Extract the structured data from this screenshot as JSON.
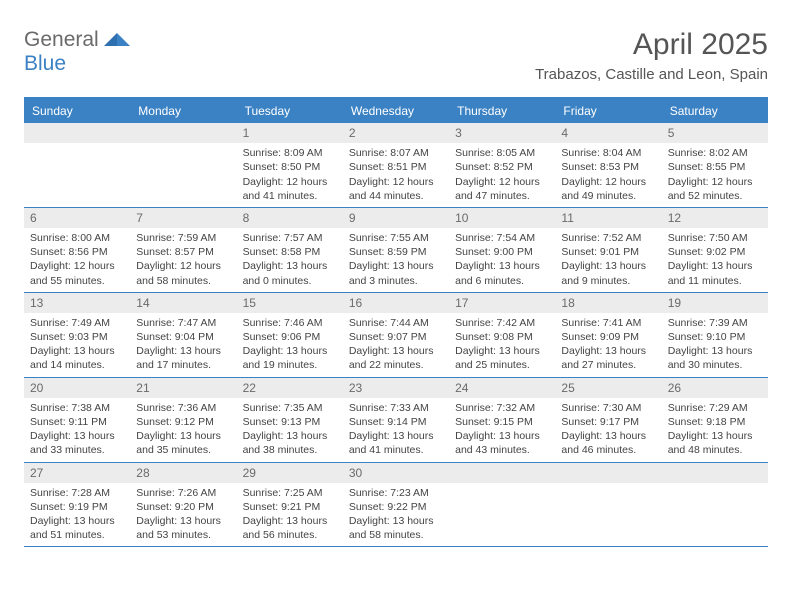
{
  "brand": {
    "part1": "General",
    "part2": "Blue"
  },
  "title": "April 2025",
  "location": "Trabazos, Castille and Leon, Spain",
  "colors": {
    "accent": "#3b82c4",
    "header_bg": "#3b82c4",
    "header_text": "#ffffff",
    "daynum_bg": "#ececec",
    "daynum_text": "#6a6a6a",
    "body_text": "#444444",
    "title_text": "#555555",
    "page_bg": "#ffffff"
  },
  "typography": {
    "title_fontsize": 30,
    "location_fontsize": 15,
    "dayhead_fontsize": 12,
    "daynum_fontsize": 12,
    "cell_fontsize": 10.5
  },
  "day_names": [
    "Sunday",
    "Monday",
    "Tuesday",
    "Wednesday",
    "Thursday",
    "Friday",
    "Saturday"
  ],
  "weeks": [
    [
      {
        "n": "",
        "sr": "",
        "ss": "",
        "dl": ""
      },
      {
        "n": "",
        "sr": "",
        "ss": "",
        "dl": ""
      },
      {
        "n": "1",
        "sr": "Sunrise: 8:09 AM",
        "ss": "Sunset: 8:50 PM",
        "dl": "Daylight: 12 hours and 41 minutes."
      },
      {
        "n": "2",
        "sr": "Sunrise: 8:07 AM",
        "ss": "Sunset: 8:51 PM",
        "dl": "Daylight: 12 hours and 44 minutes."
      },
      {
        "n": "3",
        "sr": "Sunrise: 8:05 AM",
        "ss": "Sunset: 8:52 PM",
        "dl": "Daylight: 12 hours and 47 minutes."
      },
      {
        "n": "4",
        "sr": "Sunrise: 8:04 AM",
        "ss": "Sunset: 8:53 PM",
        "dl": "Daylight: 12 hours and 49 minutes."
      },
      {
        "n": "5",
        "sr": "Sunrise: 8:02 AM",
        "ss": "Sunset: 8:55 PM",
        "dl": "Daylight: 12 hours and 52 minutes."
      }
    ],
    [
      {
        "n": "6",
        "sr": "Sunrise: 8:00 AM",
        "ss": "Sunset: 8:56 PM",
        "dl": "Daylight: 12 hours and 55 minutes."
      },
      {
        "n": "7",
        "sr": "Sunrise: 7:59 AM",
        "ss": "Sunset: 8:57 PM",
        "dl": "Daylight: 12 hours and 58 minutes."
      },
      {
        "n": "8",
        "sr": "Sunrise: 7:57 AM",
        "ss": "Sunset: 8:58 PM",
        "dl": "Daylight: 13 hours and 0 minutes."
      },
      {
        "n": "9",
        "sr": "Sunrise: 7:55 AM",
        "ss": "Sunset: 8:59 PM",
        "dl": "Daylight: 13 hours and 3 minutes."
      },
      {
        "n": "10",
        "sr": "Sunrise: 7:54 AM",
        "ss": "Sunset: 9:00 PM",
        "dl": "Daylight: 13 hours and 6 minutes."
      },
      {
        "n": "11",
        "sr": "Sunrise: 7:52 AM",
        "ss": "Sunset: 9:01 PM",
        "dl": "Daylight: 13 hours and 9 minutes."
      },
      {
        "n": "12",
        "sr": "Sunrise: 7:50 AM",
        "ss": "Sunset: 9:02 PM",
        "dl": "Daylight: 13 hours and 11 minutes."
      }
    ],
    [
      {
        "n": "13",
        "sr": "Sunrise: 7:49 AM",
        "ss": "Sunset: 9:03 PM",
        "dl": "Daylight: 13 hours and 14 minutes."
      },
      {
        "n": "14",
        "sr": "Sunrise: 7:47 AM",
        "ss": "Sunset: 9:04 PM",
        "dl": "Daylight: 13 hours and 17 minutes."
      },
      {
        "n": "15",
        "sr": "Sunrise: 7:46 AM",
        "ss": "Sunset: 9:06 PM",
        "dl": "Daylight: 13 hours and 19 minutes."
      },
      {
        "n": "16",
        "sr": "Sunrise: 7:44 AM",
        "ss": "Sunset: 9:07 PM",
        "dl": "Daylight: 13 hours and 22 minutes."
      },
      {
        "n": "17",
        "sr": "Sunrise: 7:42 AM",
        "ss": "Sunset: 9:08 PM",
        "dl": "Daylight: 13 hours and 25 minutes."
      },
      {
        "n": "18",
        "sr": "Sunrise: 7:41 AM",
        "ss": "Sunset: 9:09 PM",
        "dl": "Daylight: 13 hours and 27 minutes."
      },
      {
        "n": "19",
        "sr": "Sunrise: 7:39 AM",
        "ss": "Sunset: 9:10 PM",
        "dl": "Daylight: 13 hours and 30 minutes."
      }
    ],
    [
      {
        "n": "20",
        "sr": "Sunrise: 7:38 AM",
        "ss": "Sunset: 9:11 PM",
        "dl": "Daylight: 13 hours and 33 minutes."
      },
      {
        "n": "21",
        "sr": "Sunrise: 7:36 AM",
        "ss": "Sunset: 9:12 PM",
        "dl": "Daylight: 13 hours and 35 minutes."
      },
      {
        "n": "22",
        "sr": "Sunrise: 7:35 AM",
        "ss": "Sunset: 9:13 PM",
        "dl": "Daylight: 13 hours and 38 minutes."
      },
      {
        "n": "23",
        "sr": "Sunrise: 7:33 AM",
        "ss": "Sunset: 9:14 PM",
        "dl": "Daylight: 13 hours and 41 minutes."
      },
      {
        "n": "24",
        "sr": "Sunrise: 7:32 AM",
        "ss": "Sunset: 9:15 PM",
        "dl": "Daylight: 13 hours and 43 minutes."
      },
      {
        "n": "25",
        "sr": "Sunrise: 7:30 AM",
        "ss": "Sunset: 9:17 PM",
        "dl": "Daylight: 13 hours and 46 minutes."
      },
      {
        "n": "26",
        "sr": "Sunrise: 7:29 AM",
        "ss": "Sunset: 9:18 PM",
        "dl": "Daylight: 13 hours and 48 minutes."
      }
    ],
    [
      {
        "n": "27",
        "sr": "Sunrise: 7:28 AM",
        "ss": "Sunset: 9:19 PM",
        "dl": "Daylight: 13 hours and 51 minutes."
      },
      {
        "n": "28",
        "sr": "Sunrise: 7:26 AM",
        "ss": "Sunset: 9:20 PM",
        "dl": "Daylight: 13 hours and 53 minutes."
      },
      {
        "n": "29",
        "sr": "Sunrise: 7:25 AM",
        "ss": "Sunset: 9:21 PM",
        "dl": "Daylight: 13 hours and 56 minutes."
      },
      {
        "n": "30",
        "sr": "Sunrise: 7:23 AM",
        "ss": "Sunset: 9:22 PM",
        "dl": "Daylight: 13 hours and 58 minutes."
      },
      {
        "n": "",
        "sr": "",
        "ss": "",
        "dl": ""
      },
      {
        "n": "",
        "sr": "",
        "ss": "",
        "dl": ""
      },
      {
        "n": "",
        "sr": "",
        "ss": "",
        "dl": ""
      }
    ]
  ]
}
